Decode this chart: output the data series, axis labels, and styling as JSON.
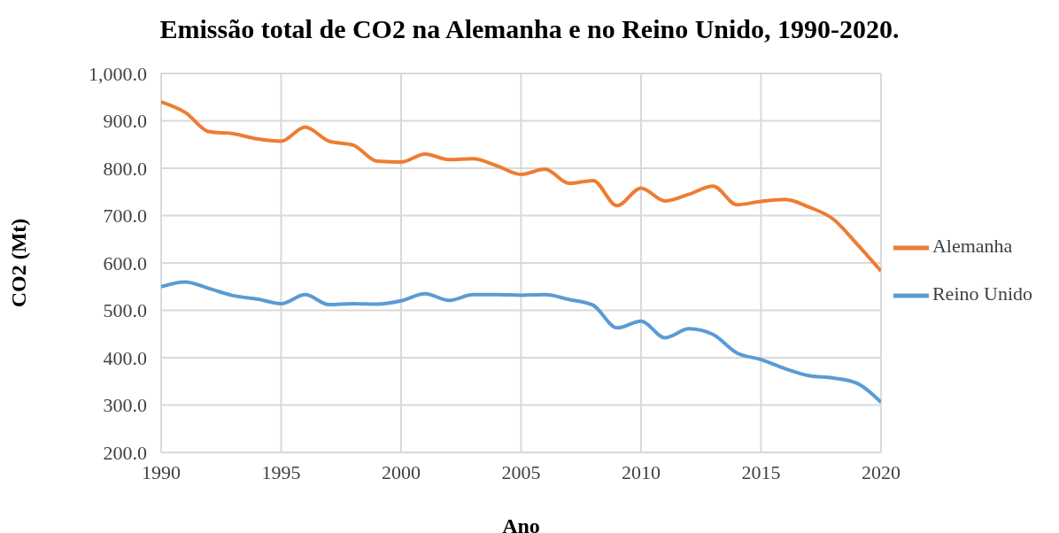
{
  "chart_data": {
    "type": "line",
    "title": "Emissão total de CO2 na Alemanha e no Reino Unido, 1990-2020.",
    "xlabel": "Ano",
    "ylabel": "CO2 (Mt)",
    "x": [
      1990,
      1991,
      1992,
      1993,
      1994,
      1995,
      1996,
      1997,
      1998,
      1999,
      2000,
      2001,
      2002,
      2003,
      2004,
      2005,
      2006,
      2007,
      2008,
      2009,
      2010,
      2011,
      2012,
      2013,
      2014,
      2015,
      2016,
      2017,
      2018,
      2019,
      2020
    ],
    "series": [
      {
        "name": "Alemanha",
        "color": "#ed7d31",
        "values": [
          940,
          918,
          877,
          873,
          862,
          857,
          887,
          857,
          849,
          815,
          813,
          830,
          818,
          820,
          805,
          787,
          798,
          768,
          774,
          721,
          758,
          731,
          745,
          762,
          723,
          730,
          734,
          718,
          693,
          640,
          583
        ]
      },
      {
        "name": "Reino Unido",
        "color": "#5b9bd5",
        "values": [
          550,
          560,
          546,
          531,
          524,
          514,
          533,
          512,
          514,
          513,
          520,
          535,
          521,
          533,
          533,
          532,
          533,
          523,
          511,
          463,
          477,
          442,
          461,
          449,
          410,
          396,
          377,
          362,
          357,
          346,
          306
        ]
      }
    ],
    "xlim": [
      1990,
      2020
    ],
    "xticks": [
      1990,
      1995,
      2000,
      2005,
      2010,
      2015,
      2020
    ],
    "ylim": [
      200,
      1000
    ],
    "yticks": [
      {
        "value": 200,
        "label": "200.0"
      },
      {
        "value": 300,
        "label": "300.0"
      },
      {
        "value": 400,
        "label": "400.0"
      },
      {
        "value": 500,
        "label": "500.0"
      },
      {
        "value": 600,
        "label": "600.0"
      },
      {
        "value": 700,
        "label": "700.0"
      },
      {
        "value": 800,
        "label": "800.0"
      },
      {
        "value": 900,
        "label": "900.0"
      },
      {
        "value": 1000,
        "label": "1,000.0"
      }
    ],
    "grid": true,
    "legend": "right",
    "marker": "none",
    "line_style": "solid"
  }
}
